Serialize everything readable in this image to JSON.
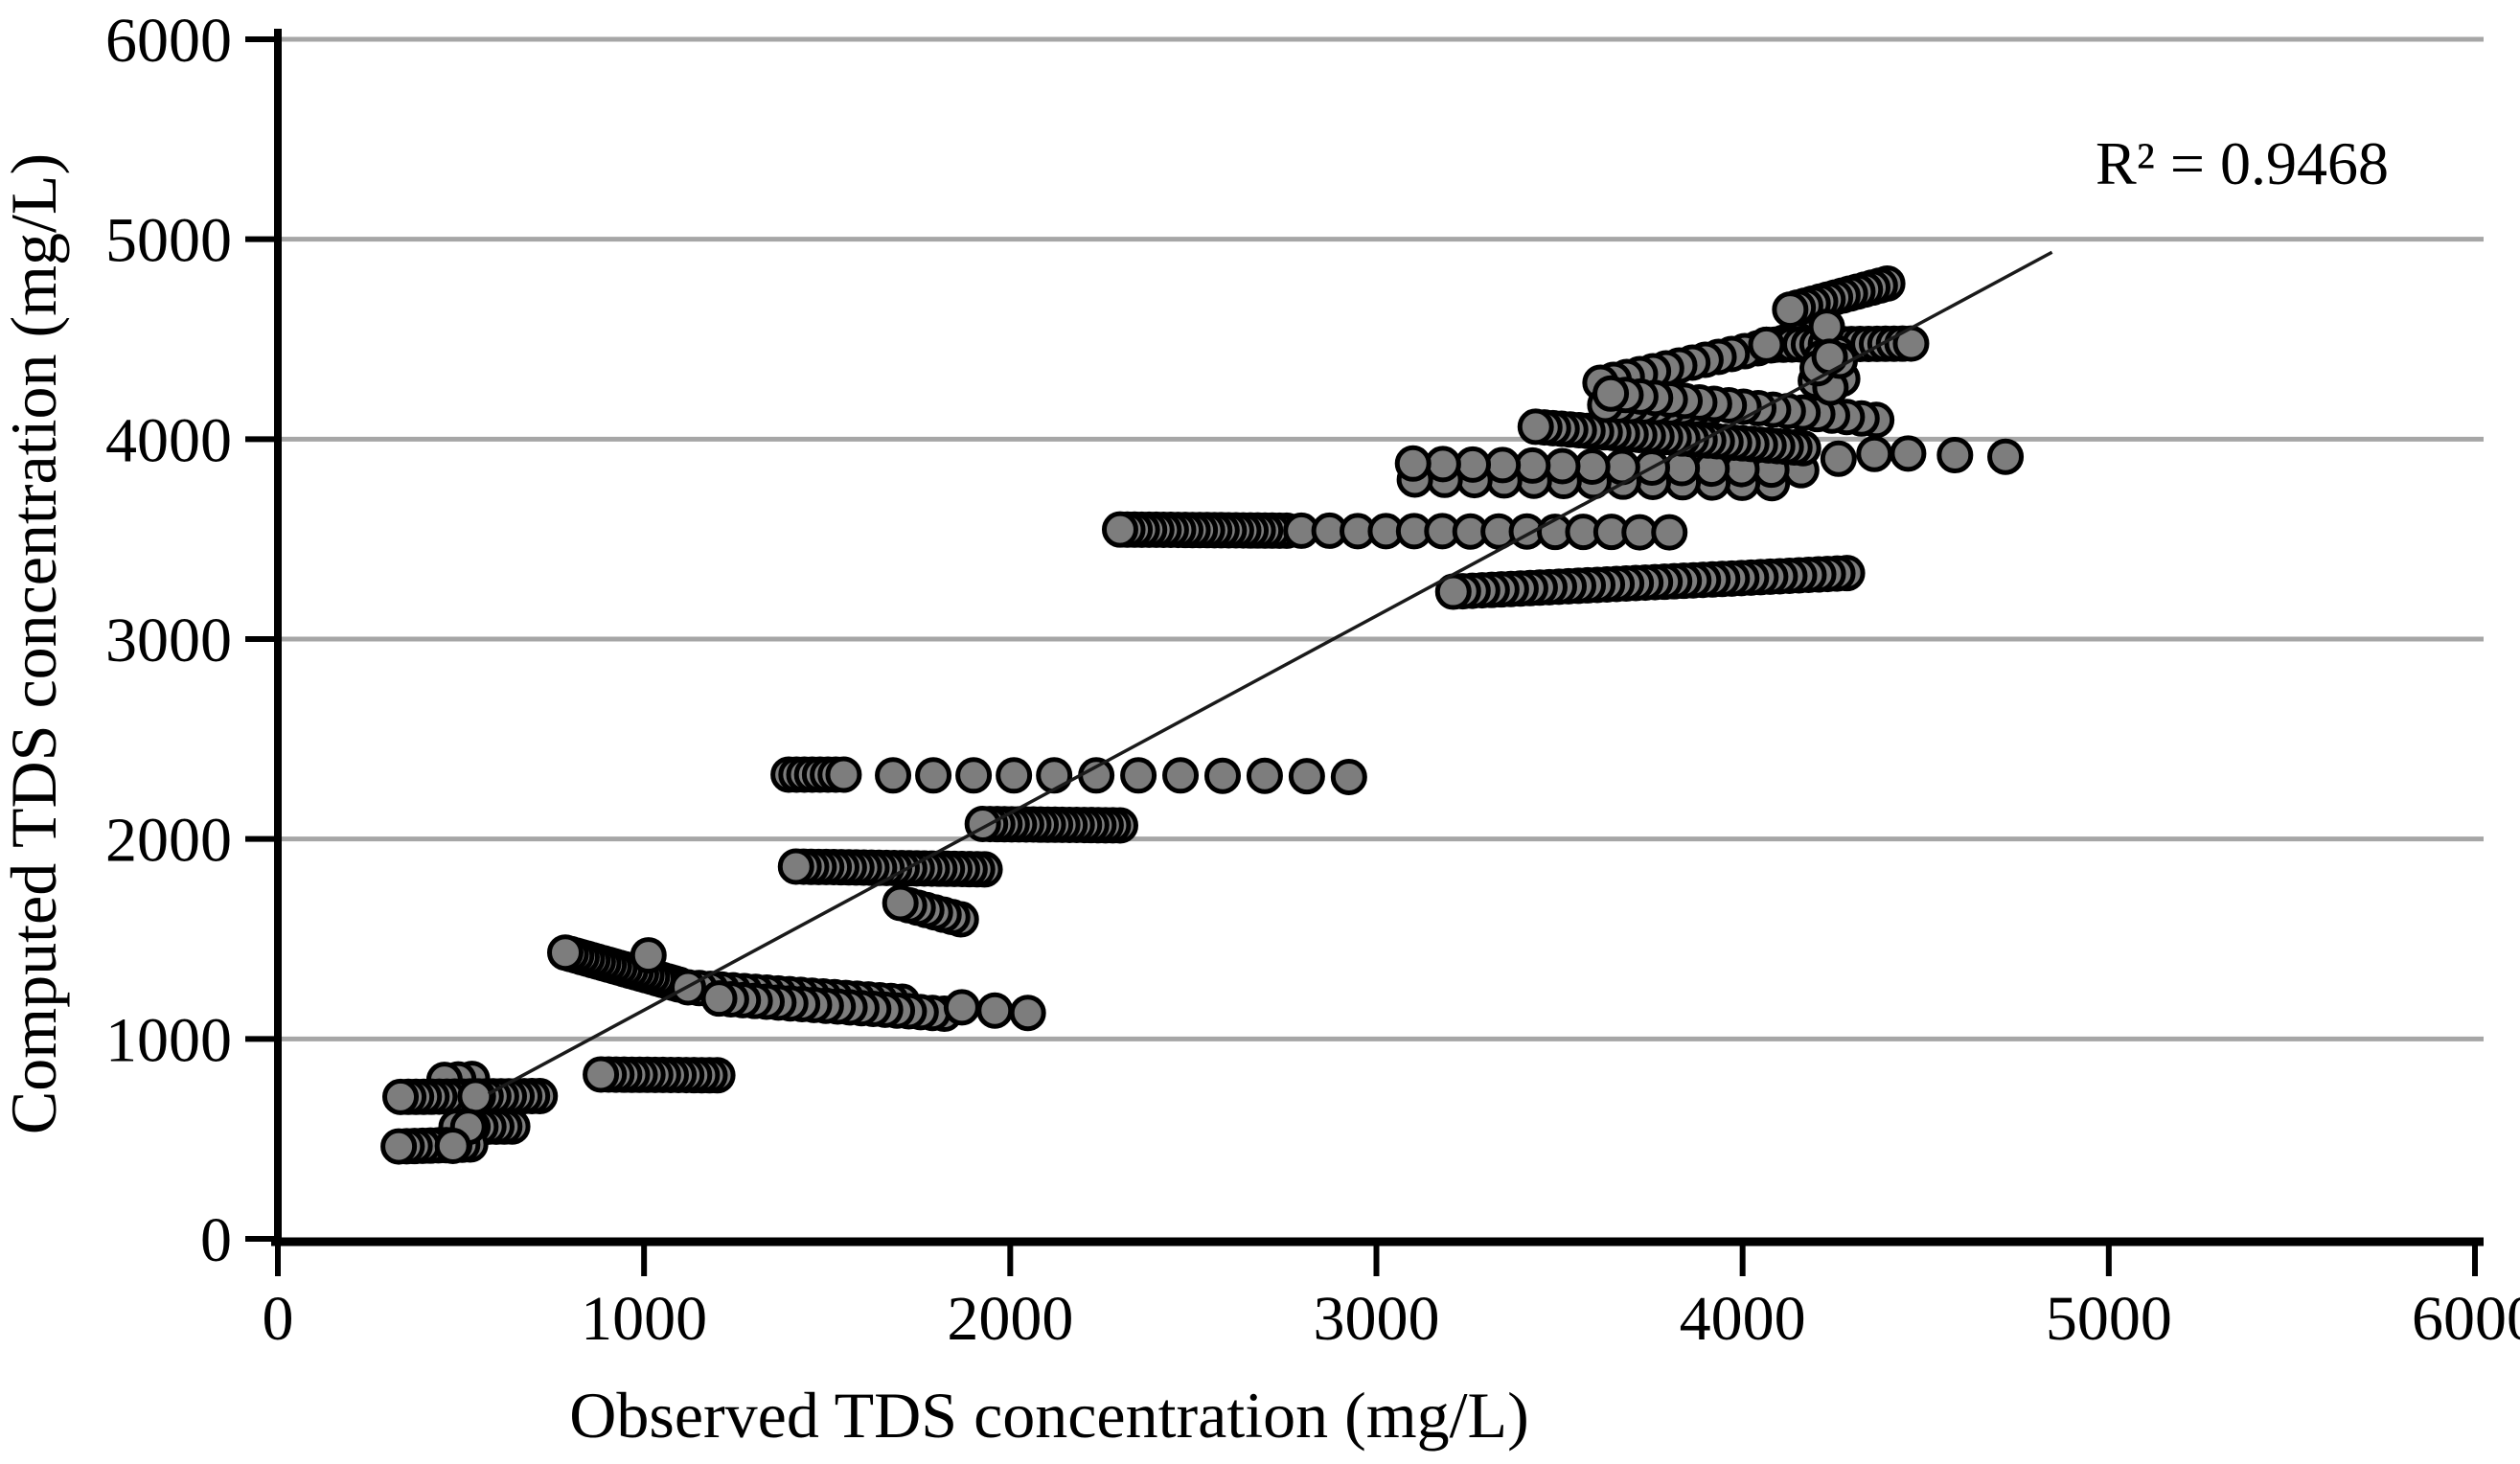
{
  "chart_data": {
    "type": "scatter",
    "title": "",
    "xlabel": "Observed TDS concentration (mg/L)",
    "ylabel": "Computed TDS concentration (mg/L)",
    "annotation": "R² = 0.9468",
    "xlim": [
      0,
      6000
    ],
    "ylim": [
      0,
      6000
    ],
    "xticks": [
      0,
      1000,
      2000,
      3000,
      4000,
      5000,
      6000
    ],
    "yticks": [
      0,
      1000,
      2000,
      3000,
      4000,
      5000,
      6000
    ],
    "grid": "horizontal-only",
    "legend": "none",
    "colors": {
      "gridline": "#a6a6a6",
      "axis": "#000000",
      "point_fill": "#7d7d7d",
      "point_stroke": "#000000",
      "trendline": "#1a1a1a"
    },
    "point_style": {
      "radius_px": 16.5,
      "stroke_width_px": 5
    },
    "trendline": {
      "x1": 575,
      "y1": 725,
      "x2": 4845,
      "y2": 4935
    },
    "bands": [
      {
        "x1": 455,
        "x2": 530,
        "y1": 795,
        "y2": 800,
        "n": 3,
        "lead": "left"
      },
      {
        "x1": 335,
        "x2": 715,
        "y1": 710,
        "y2": 714,
        "n": 19,
        "lead": "left"
      },
      {
        "x1": 488,
        "x2": 640,
        "y1": 560,
        "y2": 562,
        "n": 8,
        "lead": "left"
      },
      {
        "x1": 330,
        "x2": 525,
        "y1": 462,
        "y2": 472,
        "n": 10,
        "lead": "left"
      },
      {
        "x1": 882,
        "x2": 1200,
        "y1": 822,
        "y2": 818,
        "n": 16,
        "lead": "left"
      },
      {
        "x1": 785,
        "x2": 1095,
        "y1": 1432,
        "y2": 1272,
        "n": 22,
        "lead": "left"
      },
      {
        "x1": 1120,
        "x2": 1705,
        "y1": 1258,
        "y2": 1186,
        "n": 20,
        "lead": "left"
      },
      {
        "x1": 1205,
        "x2": 1820,
        "y1": 1202,
        "y2": 1126,
        "n": 20,
        "lead": "left"
      },
      {
        "x1": 1415,
        "x2": 1930,
        "y1": 1862,
        "y2": 1848,
        "n": 26,
        "lead": "left"
      },
      {
        "x1": 1700,
        "x2": 1865,
        "y1": 1680,
        "y2": 1598,
        "n": 8,
        "lead": "left"
      },
      {
        "x1": 1925,
        "x2": 2300,
        "y1": 2075,
        "y2": 2068,
        "n": 20,
        "lead": "left"
      },
      {
        "x1": 1395,
        "x2": 1545,
        "y1": 2322,
        "y2": 2322,
        "n": 8,
        "lead": "right"
      },
      {
        "x1": 2300,
        "x2": 2755,
        "y1": 3548,
        "y2": 3542,
        "n": 24,
        "lead": "left"
      },
      {
        "x1": 3210,
        "x2": 4285,
        "y1": 3237,
        "y2": 3330,
        "n": 42,
        "lead": "left"
      },
      {
        "x1": 3105,
        "x2": 4080,
        "y1": 3798,
        "y2": 3780,
        "n": 13,
        "lead": "left"
      },
      {
        "x1": 3100,
        "x2": 4160,
        "y1": 3878,
        "y2": 3845,
        "n": 14,
        "lead": "left"
      },
      {
        "x1": 3435,
        "x2": 4165,
        "y1": 4062,
        "y2": 3955,
        "n": 32,
        "lead": "left"
      },
      {
        "x1": 3612,
        "x2": 4185,
        "y1": 4282,
        "y2": 4512,
        "n": 17,
        "lead": "left"
      },
      {
        "x1": 3625,
        "x2": 3905,
        "y1": 4172,
        "y2": 4152,
        "n": 9,
        "lead": "left"
      },
      {
        "x1": 3640,
        "x2": 4365,
        "y1": 4228,
        "y2": 4096,
        "n": 19,
        "lead": "left"
      },
      {
        "x1": 4065,
        "x2": 4460,
        "y1": 4472,
        "y2": 4478,
        "n": 18,
        "lead": "right"
      },
      {
        "x1": 4130,
        "x2": 4395,
        "y1": 4648,
        "y2": 4778,
        "n": 14,
        "lead": "left"
      }
    ],
    "points": [
      {
        "x": 1680,
        "y": 2318
      },
      {
        "x": 1790,
        "y": 2318
      },
      {
        "x": 1900,
        "y": 2318
      },
      {
        "x": 2010,
        "y": 2318
      },
      {
        "x": 2120,
        "y": 2318
      },
      {
        "x": 2235,
        "y": 2318
      },
      {
        "x": 2350,
        "y": 2318
      },
      {
        "x": 2465,
        "y": 2318
      },
      {
        "x": 2580,
        "y": 2316
      },
      {
        "x": 2695,
        "y": 2316
      },
      {
        "x": 2810,
        "y": 2314
      },
      {
        "x": 2925,
        "y": 2310
      },
      {
        "x": 2795,
        "y": 3542
      },
      {
        "x": 2872,
        "y": 3542
      },
      {
        "x": 2949,
        "y": 3540
      },
      {
        "x": 3026,
        "y": 3540
      },
      {
        "x": 3103,
        "y": 3540
      },
      {
        "x": 3180,
        "y": 3540
      },
      {
        "x": 3257,
        "y": 3538
      },
      {
        "x": 3334,
        "y": 3538
      },
      {
        "x": 3411,
        "y": 3538
      },
      {
        "x": 3488,
        "y": 3536
      },
      {
        "x": 3565,
        "y": 3536
      },
      {
        "x": 3642,
        "y": 3536
      },
      {
        "x": 3719,
        "y": 3534
      },
      {
        "x": 3800,
        "y": 3534
      },
      {
        "x": 1868,
        "y": 1158
      },
      {
        "x": 1958,
        "y": 1142
      },
      {
        "x": 2048,
        "y": 1130
      },
      {
        "x": 4262,
        "y": 3902
      },
      {
        "x": 4360,
        "y": 3926
      },
      {
        "x": 4452,
        "y": 3928
      },
      {
        "x": 4580,
        "y": 3920
      },
      {
        "x": 4718,
        "y": 3912
      },
      {
        "x": 4200,
        "y": 4292
      },
      {
        "x": 4228,
        "y": 4330
      },
      {
        "x": 4248,
        "y": 4368
      },
      {
        "x": 4215,
        "y": 4405
      },
      {
        "x": 4258,
        "y": 4430
      },
      {
        "x": 4272,
        "y": 4302
      },
      {
        "x": 4240,
        "y": 4258
      },
      {
        "x": 4205,
        "y": 4355
      },
      {
        "x": 4265,
        "y": 4392
      },
      {
        "x": 1012,
        "y": 1418
      },
      {
        "x": 4230,
        "y": 4562
      },
      {
        "x": 4238,
        "y": 4412
      },
      {
        "x": 4065,
        "y": 4472
      },
      {
        "x": 540,
        "y": 712
      },
      {
        "x": 520,
        "y": 560
      },
      {
        "x": 478,
        "y": 465
      }
    ]
  }
}
